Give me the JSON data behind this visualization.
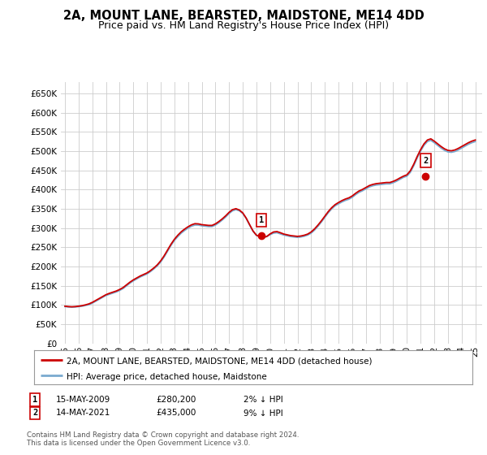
{
  "title": "2A, MOUNT LANE, BEARSTED, MAIDSTONE, ME14 4DD",
  "subtitle": "Price paid vs. HM Land Registry's House Price Index (HPI)",
  "ylabel_ticks": [
    "£0",
    "£50K",
    "£100K",
    "£150K",
    "£200K",
    "£250K",
    "£300K",
    "£350K",
    "£400K",
    "£450K",
    "£500K",
    "£550K",
    "£600K",
    "£650K"
  ],
  "ytick_vals": [
    0,
    50000,
    100000,
    150000,
    200000,
    250000,
    300000,
    350000,
    400000,
    450000,
    500000,
    550000,
    600000,
    650000
  ],
  "ylim": [
    0,
    680000
  ],
  "xlim_start": 1994.7,
  "xlim_end": 2025.5,
  "xtick_years": [
    1995,
    1996,
    1997,
    1998,
    1999,
    2000,
    2001,
    2002,
    2003,
    2004,
    2005,
    2006,
    2007,
    2008,
    2009,
    2010,
    2011,
    2012,
    2013,
    2014,
    2015,
    2016,
    2017,
    2018,
    2019,
    2020,
    2021,
    2022,
    2023,
    2024,
    2025
  ],
  "xtick_labels": [
    "95",
    "96",
    "97",
    "98",
    "99",
    "00",
    "01",
    "02",
    "03",
    "04",
    "05",
    "06",
    "07",
    "08",
    "09",
    "10",
    "11",
    "12",
    "13",
    "14",
    "15",
    "16",
    "17",
    "18",
    "19",
    "20",
    "21",
    "22",
    "23",
    "24",
    "25"
  ],
  "sale1_x": 2009.37,
  "sale1_y": 280200,
  "sale1_label": "1",
  "sale2_x": 2021.37,
  "sale2_y": 435000,
  "sale2_label": "2",
  "legend_line1": "2A, MOUNT LANE, BEARSTED, MAIDSTONE, ME14 4DD (detached house)",
  "legend_line2": "HPI: Average price, detached house, Maidstone",
  "annotation1_date": "15-MAY-2009",
  "annotation1_price": "£280,200",
  "annotation1_hpi": "2% ↓ HPI",
  "annotation2_date": "14-MAY-2021",
  "annotation2_price": "£435,000",
  "annotation2_hpi": "9% ↓ HPI",
  "footnote": "Contains HM Land Registry data © Crown copyright and database right 2024.\nThis data is licensed under the Open Government Licence v3.0.",
  "house_color": "#cc0000",
  "hpi_color": "#7aaacf",
  "background_color": "#ffffff",
  "grid_color": "#cccccc",
  "title_fontsize": 10.5,
  "subtitle_fontsize": 9,
  "hpi_data_x": [
    1995.0,
    1995.25,
    1995.5,
    1995.75,
    1996.0,
    1996.25,
    1996.5,
    1996.75,
    1997.0,
    1997.25,
    1997.5,
    1997.75,
    1998.0,
    1998.25,
    1998.5,
    1998.75,
    1999.0,
    1999.25,
    1999.5,
    1999.75,
    2000.0,
    2000.25,
    2000.5,
    2000.75,
    2001.0,
    2001.25,
    2001.5,
    2001.75,
    2002.0,
    2002.25,
    2002.5,
    2002.75,
    2003.0,
    2003.25,
    2003.5,
    2003.75,
    2004.0,
    2004.25,
    2004.5,
    2004.75,
    2005.0,
    2005.25,
    2005.5,
    2005.75,
    2006.0,
    2006.25,
    2006.5,
    2006.75,
    2007.0,
    2007.25,
    2007.5,
    2007.75,
    2008.0,
    2008.25,
    2008.5,
    2008.75,
    2009.0,
    2009.25,
    2009.5,
    2009.75,
    2010.0,
    2010.25,
    2010.5,
    2010.75,
    2011.0,
    2011.25,
    2011.5,
    2011.75,
    2012.0,
    2012.25,
    2012.5,
    2012.75,
    2013.0,
    2013.25,
    2013.5,
    2013.75,
    2014.0,
    2014.25,
    2014.5,
    2014.75,
    2015.0,
    2015.25,
    2015.5,
    2015.75,
    2016.0,
    2016.25,
    2016.5,
    2016.75,
    2017.0,
    2017.25,
    2017.5,
    2017.75,
    2018.0,
    2018.25,
    2018.5,
    2018.75,
    2019.0,
    2019.25,
    2019.5,
    2019.75,
    2020.0,
    2020.25,
    2020.5,
    2020.75,
    2021.0,
    2021.25,
    2021.5,
    2021.75,
    2022.0,
    2022.25,
    2022.5,
    2022.75,
    2023.0,
    2023.25,
    2023.5,
    2023.75,
    2024.0,
    2024.25,
    2024.5,
    2024.75,
    2025.0
  ],
  "hpi_data_y": [
    96000,
    95000,
    94500,
    95000,
    96000,
    97000,
    99000,
    101000,
    105000,
    110000,
    115000,
    120000,
    125000,
    128000,
    131000,
    134000,
    138000,
    143000,
    150000,
    157000,
    163000,
    168000,
    173000,
    177000,
    181000,
    187000,
    194000,
    202000,
    212000,
    225000,
    240000,
    255000,
    268000,
    278000,
    287000,
    294000,
    300000,
    305000,
    308000,
    308000,
    306000,
    305000,
    304000,
    304000,
    308000,
    314000,
    321000,
    329000,
    338000,
    345000,
    348000,
    345000,
    338000,
    325000,
    308000,
    292000,
    281000,
    278000,
    276000,
    278000,
    283000,
    287000,
    288000,
    285000,
    282000,
    280000,
    278000,
    277000,
    276000,
    277000,
    279000,
    282000,
    287000,
    295000,
    305000,
    316000,
    328000,
    340000,
    350000,
    358000,
    363000,
    368000,
    372000,
    375000,
    380000,
    387000,
    393000,
    397000,
    402000,
    407000,
    410000,
    412000,
    413000,
    414000,
    415000,
    415000,
    418000,
    422000,
    427000,
    432000,
    435000,
    445000,
    462000,
    482000,
    500000,
    515000,
    525000,
    528000,
    522000,
    515000,
    508000,
    502000,
    498000,
    497000,
    499000,
    503000,
    508000,
    513000,
    518000,
    522000,
    525000
  ],
  "house_data_x": [
    1995.0,
    1995.25,
    1995.5,
    1995.75,
    1996.0,
    1996.25,
    1996.5,
    1996.75,
    1997.0,
    1997.25,
    1997.5,
    1997.75,
    1998.0,
    1998.25,
    1998.5,
    1998.75,
    1999.0,
    1999.25,
    1999.5,
    1999.75,
    2000.0,
    2000.25,
    2000.5,
    2000.75,
    2001.0,
    2001.25,
    2001.5,
    2001.75,
    2002.0,
    2002.25,
    2002.5,
    2002.75,
    2003.0,
    2003.25,
    2003.5,
    2003.75,
    2004.0,
    2004.25,
    2004.5,
    2004.75,
    2005.0,
    2005.25,
    2005.5,
    2005.75,
    2006.0,
    2006.25,
    2006.5,
    2006.75,
    2007.0,
    2007.25,
    2007.5,
    2007.75,
    2008.0,
    2008.25,
    2008.5,
    2008.75,
    2009.0,
    2009.25,
    2009.5,
    2009.75,
    2010.0,
    2010.25,
    2010.5,
    2010.75,
    2011.0,
    2011.25,
    2011.5,
    2011.75,
    2012.0,
    2012.25,
    2012.5,
    2012.75,
    2013.0,
    2013.25,
    2013.5,
    2013.75,
    2014.0,
    2014.25,
    2014.5,
    2014.75,
    2015.0,
    2015.25,
    2015.5,
    2015.75,
    2016.0,
    2016.25,
    2016.5,
    2016.75,
    2017.0,
    2017.25,
    2017.5,
    2017.75,
    2018.0,
    2018.25,
    2018.5,
    2018.75,
    2019.0,
    2019.25,
    2019.5,
    2019.75,
    2020.0,
    2020.25,
    2020.5,
    2020.75,
    2021.0,
    2021.25,
    2021.5,
    2021.75,
    2022.0,
    2022.25,
    2022.5,
    2022.75,
    2023.0,
    2023.25,
    2023.5,
    2023.75,
    2024.0,
    2024.25,
    2024.5,
    2024.75,
    2025.0
  ],
  "house_data_y": [
    97000,
    96000,
    95500,
    96000,
    97000,
    98500,
    100500,
    103000,
    107000,
    112000,
    117000,
    122000,
    127000,
    130500,
    133500,
    136500,
    140500,
    145500,
    152500,
    159500,
    165500,
    170500,
    175500,
    179500,
    183500,
    189500,
    196500,
    204500,
    215000,
    228000,
    243000,
    258000,
    271000,
    281500,
    290500,
    297500,
    303500,
    308500,
    311500,
    311000,
    309000,
    308000,
    307000,
    307000,
    311000,
    317000,
    324000,
    332000,
    341000,
    348000,
    350500,
    347000,
    339500,
    326000,
    309000,
    292500,
    281500,
    278200,
    276200,
    278200,
    285000,
    290000,
    291000,
    288000,
    284500,
    282500,
    280500,
    279500,
    278500,
    279500,
    281500,
    284500,
    290000,
    298000,
    308000,
    319000,
    331000,
    343000,
    353000,
    361000,
    366500,
    371500,
    375500,
    378500,
    383500,
    390500,
    396500,
    400500,
    405500,
    410500,
    413500,
    415500,
    416500,
    417500,
    418500,
    418500,
    421500,
    425500,
    430500,
    435000,
    438500,
    449000,
    466000,
    486000,
    504000,
    519000,
    529000,
    532000,
    526000,
    519000,
    512000,
    506000,
    502000,
    501000,
    503000,
    507000,
    512000,
    517000,
    522000,
    526000,
    529000
  ]
}
